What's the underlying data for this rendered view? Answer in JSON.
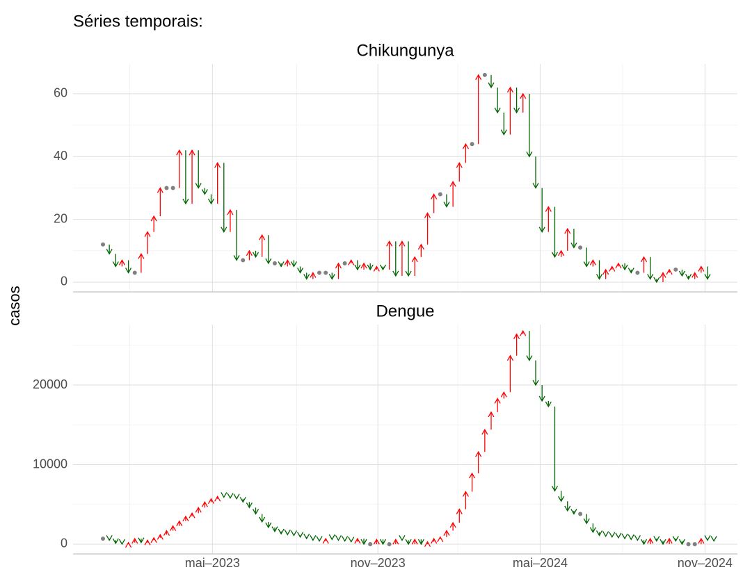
{
  "title": "Séries temporais:",
  "y_label": "casos",
  "chart_data": [
    {
      "type": "arrow",
      "title": "Chikungunya",
      "x": [
        0,
        1,
        2,
        3,
        4,
        5,
        6,
        7,
        8,
        9,
        10,
        11,
        12,
        13,
        14,
        15,
        16,
        17,
        18,
        19,
        20,
        21,
        22,
        23,
        24,
        25,
        26,
        27,
        28,
        29,
        30,
        31,
        32,
        33,
        34,
        35,
        36,
        37,
        38,
        39,
        40,
        41,
        42,
        43,
        44,
        45,
        46,
        47,
        48,
        49,
        50,
        51,
        52,
        53,
        54,
        55,
        56,
        57,
        58,
        59,
        60,
        61,
        62,
        63,
        64,
        65,
        66,
        67,
        68,
        69,
        70,
        71,
        72,
        73,
        74,
        75,
        76,
        77,
        78,
        79,
        80,
        81,
        82,
        83,
        84,
        85,
        86,
        87,
        88,
        89,
        90,
        91,
        92,
        93,
        94,
        95
      ],
      "values": [
        12,
        9,
        5,
        7,
        3,
        3,
        9,
        16,
        21,
        30,
        30,
        30,
        42,
        25,
        42,
        30,
        28,
        25,
        38,
        16,
        23,
        7,
        7,
        10,
        8,
        15,
        6,
        6,
        5,
        7,
        5,
        3,
        1,
        3,
        3,
        3,
        1,
        6,
        6,
        7,
        4,
        6,
        4,
        5,
        4,
        13,
        2,
        13,
        2,
        8,
        12,
        22,
        28,
        28,
        24,
        32,
        38,
        44,
        44,
        66,
        66,
        62,
        54,
        47,
        62,
        54,
        60,
        40,
        30,
        16,
        24,
        8,
        10,
        17,
        11,
        11,
        5,
        7,
        1,
        4,
        5,
        6,
        4,
        3,
        3,
        8,
        1,
        0,
        3,
        4,
        4,
        2,
        1,
        3,
        5,
        1
      ],
      "xlim": [
        -4.7,
        99.7
      ],
      "ylim": [
        -3.1,
        69.5
      ],
      "yticks": [
        0,
        20,
        40,
        60
      ],
      "up_color": "#ff0000",
      "down_color": "#006400",
      "flat_color": "#808080",
      "grid": true
    },
    {
      "type": "arrow",
      "title": "Dengue",
      "x": [
        0,
        1,
        2,
        3,
        4,
        5,
        6,
        7,
        8,
        9,
        10,
        11,
        12,
        13,
        14,
        15,
        16,
        17,
        18,
        19,
        20,
        21,
        22,
        23,
        24,
        25,
        26,
        27,
        28,
        29,
        30,
        31,
        32,
        33,
        34,
        35,
        36,
        37,
        38,
        39,
        40,
        41,
        42,
        43,
        44,
        45,
        46,
        47,
        48,
        49,
        50,
        51,
        52,
        53,
        54,
        55,
        56,
        57,
        58,
        59,
        60,
        61,
        62,
        63,
        64,
        65,
        66,
        67,
        68,
        69,
        70,
        71,
        72,
        73,
        74,
        75,
        76,
        77,
        78,
        79,
        80,
        81,
        82,
        83,
        84,
        85,
        86,
        87,
        88,
        89,
        90,
        91,
        92,
        93,
        94,
        95,
        96
      ],
      "values": [
        700,
        500,
        100,
        0,
        200,
        700,
        200,
        500,
        800,
        1200,
        1700,
        2300,
        2900,
        3500,
        3900,
        4600,
        5300,
        5700,
        6000,
        5900,
        5800,
        5700,
        5300,
        4600,
        3800,
        2800,
        2100,
        1600,
        1300,
        1200,
        1100,
        900,
        700,
        500,
        400,
        700,
        600,
        500,
        400,
        300,
        700,
        0,
        0,
        600,
        0,
        0,
        600,
        500,
        0,
        600,
        0,
        300,
        700,
        900,
        1700,
        2700,
        4400,
        6600,
        8900,
        11600,
        14400,
        16600,
        18300,
        19100,
        23700,
        26400,
        26800,
        23100,
        20000,
        18000,
        17300,
        6700,
        5400,
        4200,
        3800,
        3800,
        2600,
        1500,
        1100,
        1000,
        900,
        800,
        700,
        600,
        500,
        0,
        700,
        400,
        0,
        700,
        400,
        0,
        0,
        0,
        700,
        500,
        400
      ],
      "xlim": [
        -4.7,
        99.7
      ],
      "ylim": [
        -1223,
        27600
      ],
      "yticks": [
        0,
        10000,
        20000
      ],
      "xticks": [
        {
          "value": 17.2,
          "label": "mai–2023"
        },
        {
          "value": 43.2,
          "label": "nov–2023"
        },
        {
          "value": 68.7,
          "label": "mai–2024"
        },
        {
          "value": 94.6,
          "label": "nov–2024"
        }
      ],
      "up_color": "#ff0000",
      "down_color": "#006400",
      "flat_color": "#808080",
      "grid": true
    }
  ]
}
